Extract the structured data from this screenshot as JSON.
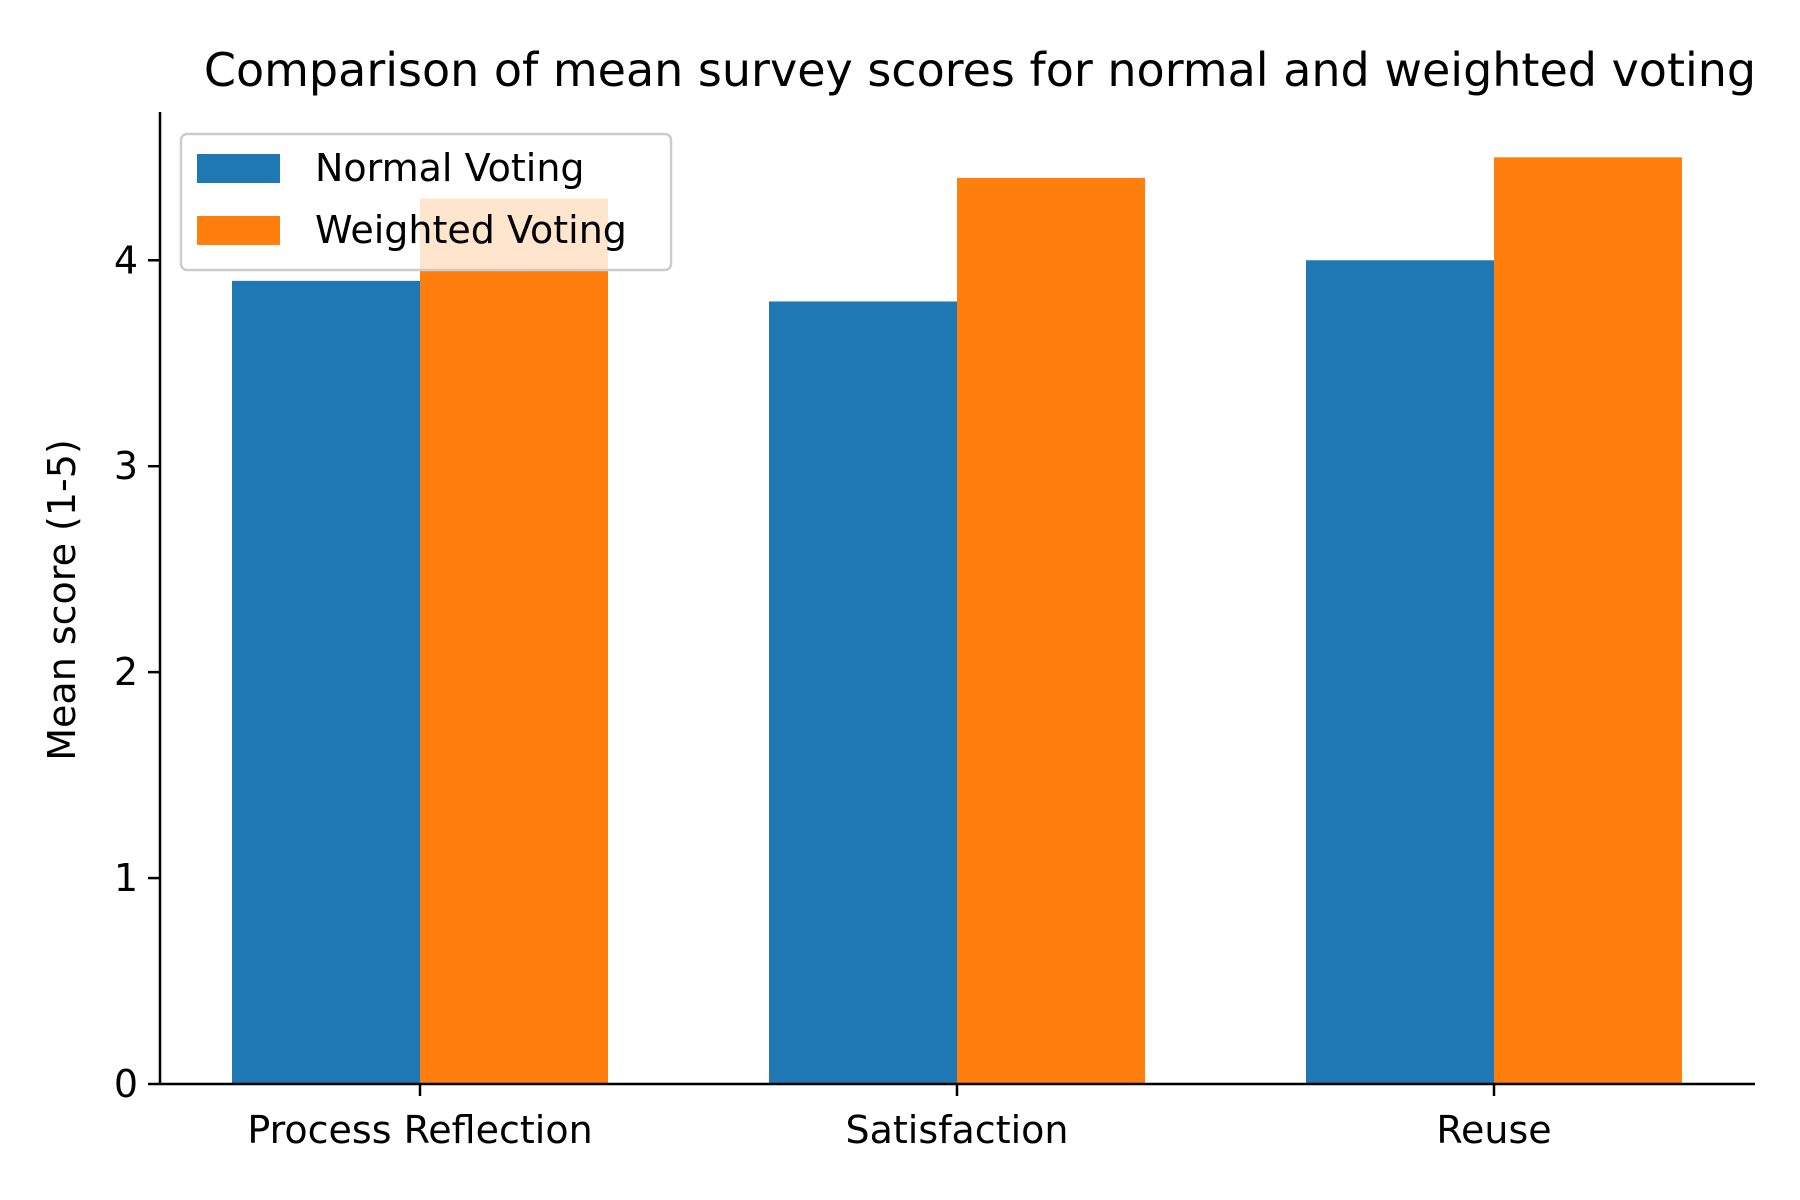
{
  "chart_data": {
    "type": "bar",
    "title": "Comparison of mean survey scores for normal and weighted voting",
    "xlabel": "",
    "ylabel": "Mean score (1-5)",
    "categories": [
      "Process Reflection",
      "Satisfaction",
      "Reuse"
    ],
    "series": [
      {
        "name": "Normal Voting",
        "values": [
          3.9,
          3.8,
          4.0
        ],
        "color": "#1f77b4"
      },
      {
        "name": "Weighted Voting",
        "values": [
          4.3,
          4.4,
          4.5
        ],
        "color": "#ff7f0e"
      }
    ],
    "ylim": [
      0,
      4.72
    ],
    "yticks": [
      0,
      1,
      2,
      3,
      4
    ],
    "grid": false,
    "legend": {
      "placement": "upper-left"
    }
  }
}
